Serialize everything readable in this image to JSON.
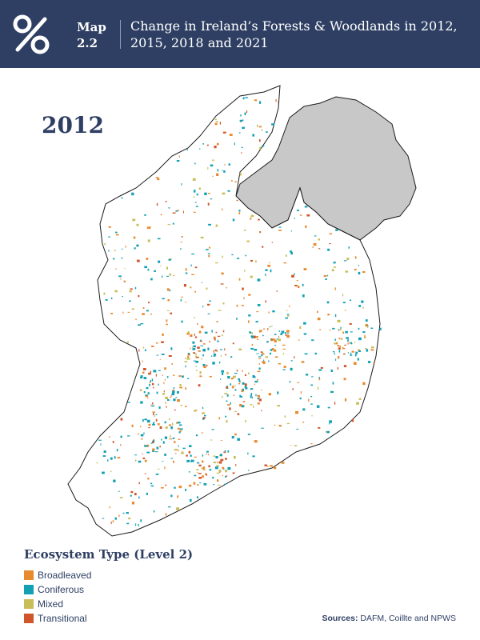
{
  "header": {
    "map_label": "Map",
    "map_number": "2.2",
    "title": "Change in Ireland’s Forests & Woodlands in 2012, 2015, 2018 and 2021"
  },
  "year": "2012",
  "legend": {
    "title": "Ecosystem Type (Level 2)",
    "items": [
      {
        "label": "Broadleaved",
        "color": "#e88a2e"
      },
      {
        "label": "Coniferous",
        "color": "#13a0b4"
      },
      {
        "label": "Mixed",
        "color": "#c9bd57"
      },
      {
        "label": "Transitional",
        "color": "#d0552a"
      }
    ]
  },
  "sources": {
    "label": "Sources:",
    "text": "DAFM, Coillte and NPWS"
  },
  "colors": {
    "header_bg": "#2e3f63",
    "northern_ireland": "#c8c8c8",
    "coastline": "#1a1a1a"
  }
}
